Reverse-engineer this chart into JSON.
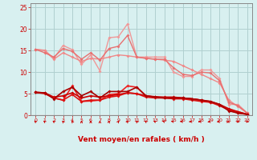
{
  "bg_color": "#d8f0f0",
  "grid_color": "#b0d0d0",
  "xlabel": "Vent moyen/en rafales ( km/h )",
  "xlim": [
    -0.5,
    23.5
  ],
  "ylim": [
    0,
    26
  ],
  "yticks": [
    0,
    5,
    10,
    15,
    20,
    25
  ],
  "xticks": [
    0,
    1,
    2,
    3,
    4,
    5,
    6,
    7,
    8,
    9,
    10,
    11,
    12,
    13,
    14,
    15,
    16,
    17,
    18,
    19,
    20,
    21,
    22,
    23
  ],
  "tick_color": "#cc0000",
  "spine_color": "#888888",
  "series": [
    {
      "x": [
        0,
        1,
        2,
        3,
        4,
        5,
        6,
        7,
        8,
        9,
        10,
        11,
        12,
        13,
        14,
        15,
        16,
        17,
        18,
        19,
        20,
        21,
        22,
        23
      ],
      "y": [
        15.3,
        15.1,
        13.2,
        16.2,
        15.2,
        11.8,
        14.0,
        10.3,
        18.0,
        18.2,
        21.2,
        13.5,
        13.5,
        13.5,
        13.5,
        10.0,
        9.0,
        9.0,
        10.5,
        10.5,
        8.5,
        2.5,
        2.5,
        0.5
      ],
      "color": "#f09898",
      "lw": 1.0,
      "marker": "D",
      "ms": 2.0
    },
    {
      "x": [
        0,
        1,
        2,
        3,
        4,
        5,
        6,
        7,
        8,
        9,
        10,
        11,
        12,
        13,
        14,
        15,
        16,
        17,
        18,
        19,
        20,
        21,
        22,
        23
      ],
      "y": [
        15.3,
        15.0,
        13.0,
        14.5,
        13.5,
        12.5,
        13.2,
        13.0,
        13.5,
        14.0,
        13.8,
        13.5,
        13.2,
        13.0,
        12.8,
        12.5,
        11.5,
        10.5,
        9.5,
        8.5,
        7.5,
        3.5,
        2.0,
        0.5
      ],
      "color": "#f08888",
      "lw": 1.0,
      "marker": "D",
      "ms": 2.0
    },
    {
      "x": [
        0,
        1,
        2,
        3,
        4,
        5,
        6,
        7,
        8,
        9,
        10,
        11,
        12,
        13,
        14,
        15,
        16,
        17,
        18,
        19,
        20,
        21,
        22,
        23
      ],
      "y": [
        15.3,
        14.5,
        13.5,
        15.5,
        14.8,
        13.0,
        14.5,
        12.8,
        15.5,
        16.0,
        18.5,
        13.5,
        13.2,
        13.0,
        13.0,
        11.0,
        9.5,
        9.2,
        10.0,
        9.8,
        8.0,
        3.0,
        2.2,
        0.5
      ],
      "color": "#e87070",
      "lw": 1.0,
      "marker": "D",
      "ms": 2.0
    },
    {
      "x": [
        0,
        1,
        2,
        3,
        4,
        5,
        6,
        7,
        8,
        9,
        10,
        11,
        12,
        13,
        14,
        15,
        16,
        17,
        18,
        19,
        20,
        21,
        22,
        23
      ],
      "y": [
        5.3,
        5.2,
        4.0,
        3.5,
        6.8,
        3.2,
        3.3,
        3.5,
        4.8,
        5.0,
        6.8,
        6.5,
        4.5,
        4.2,
        4.0,
        4.0,
        4.0,
        3.8,
        3.5,
        3.2,
        2.5,
        1.2,
        0.8,
        0.2
      ],
      "color": "#ee2222",
      "lw": 1.2,
      "marker": "D",
      "ms": 2.0
    },
    {
      "x": [
        0,
        1,
        2,
        3,
        4,
        5,
        6,
        7,
        8,
        9,
        10,
        11,
        12,
        13,
        14,
        15,
        16,
        17,
        18,
        19,
        20,
        21,
        22,
        23
      ],
      "y": [
        5.3,
        5.2,
        4.2,
        4.5,
        5.2,
        4.0,
        4.5,
        4.2,
        4.5,
        4.8,
        5.2,
        5.0,
        4.5,
        4.3,
        4.2,
        4.2,
        4.0,
        3.8,
        3.5,
        3.0,
        2.5,
        1.5,
        0.8,
        0.2
      ],
      "color": "#cc0000",
      "lw": 1.2,
      "marker": "D",
      "ms": 2.0
    },
    {
      "x": [
        0,
        1,
        2,
        3,
        4,
        5,
        6,
        7,
        8,
        9,
        10,
        11,
        12,
        13,
        14,
        15,
        16,
        17,
        18,
        19,
        20,
        21,
        22,
        23
      ],
      "y": [
        5.3,
        5.0,
        4.0,
        3.5,
        4.8,
        3.2,
        3.5,
        3.5,
        4.2,
        4.5,
        5.2,
        5.0,
        4.2,
        4.0,
        4.0,
        3.8,
        3.8,
        3.5,
        3.2,
        3.0,
        2.2,
        1.2,
        0.5,
        0.2
      ],
      "color": "#dd1111",
      "lw": 1.2,
      "marker": "D",
      "ms": 2.0
    },
    {
      "x": [
        0,
        1,
        2,
        3,
        4,
        5,
        6,
        7,
        8,
        9,
        10,
        11,
        12,
        13,
        14,
        15,
        16,
        17,
        18,
        19,
        20,
        21,
        22,
        23
      ],
      "y": [
        5.3,
        5.2,
        3.8,
        5.5,
        6.5,
        4.5,
        5.5,
        4.0,
        5.5,
        5.5,
        5.5,
        6.5,
        4.5,
        4.2,
        4.0,
        4.0,
        4.0,
        3.8,
        3.5,
        3.2,
        2.5,
        1.0,
        0.5,
        0.2
      ],
      "color": "#aa0000",
      "lw": 1.2,
      "marker": "D",
      "ms": 2.0
    }
  ],
  "arrow_color": "#cc0000",
  "arrow_angles": [
    210,
    210,
    210,
    200,
    200,
    180,
    180,
    180,
    170,
    160,
    160,
    200,
    210,
    220,
    230,
    250,
    260,
    270,
    270,
    280,
    290,
    310,
    320,
    330
  ]
}
